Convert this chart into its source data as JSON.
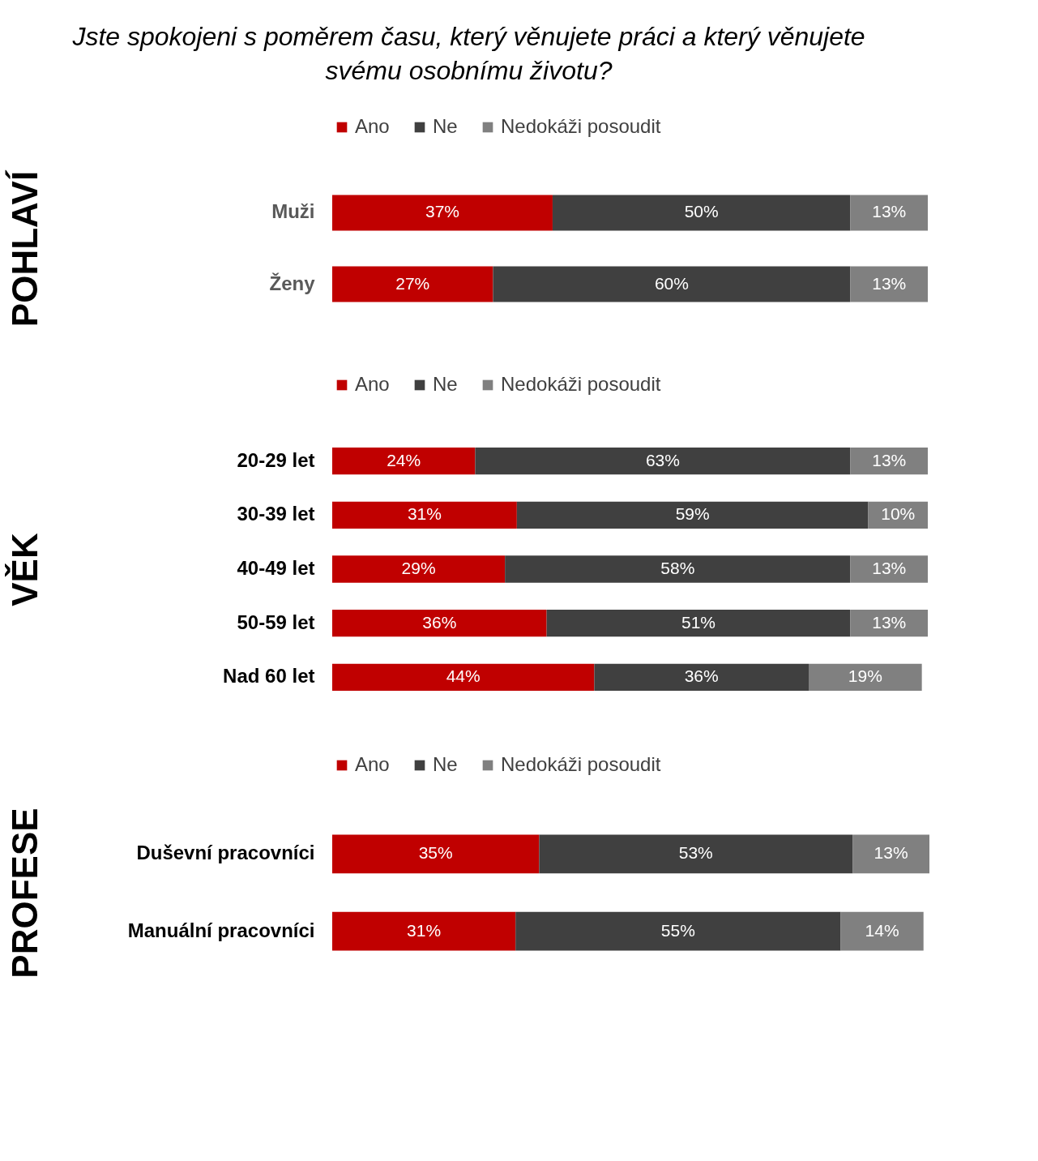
{
  "chart_data": [
    {
      "type": "bar",
      "title": "Jste spokojeni s poměrem času, který věnujete práci a který věnujete svému osobnímu životu?",
      "ylabel": "POHLAVÍ",
      "orientation": "horizontal",
      "stacked": true,
      "categories": [
        "Muži",
        "Ženy"
      ],
      "xlim": [
        0,
        100
      ],
      "tick_labels": "y",
      "legend": "top",
      "series": [
        {
          "name": "Ano",
          "color": "#c00000",
          "values": [
            37,
            27
          ],
          "value_labels": [
            "37%",
            "27%"
          ]
        },
        {
          "name": "Ne",
          "color": "#404040",
          "values": [
            50,
            60
          ],
          "value_labels": [
            "50%",
            "60%"
          ]
        },
        {
          "name": "Nedokáži posoudit",
          "color": "#808080",
          "values": [
            13,
            13
          ],
          "value_labels": [
            "13%",
            "13%"
          ]
        }
      ]
    },
    {
      "type": "bar",
      "ylabel": "VĚK",
      "orientation": "horizontal",
      "stacked": true,
      "categories": [
        "20-29 let",
        "30-39 let",
        "40-49 let",
        "50-59 let",
        "Nad 60 let"
      ],
      "xlim": [
        0,
        100
      ],
      "tick_labels": "y",
      "legend": "top",
      "series": [
        {
          "name": "Ano",
          "color": "#c00000",
          "values": [
            24,
            31,
            29,
            36,
            44
          ],
          "value_labels": [
            "24%",
            "31%",
            "29%",
            "36%",
            "44%"
          ]
        },
        {
          "name": "Ne",
          "color": "#404040",
          "values": [
            63,
            59,
            58,
            51,
            36
          ],
          "value_labels": [
            "63%",
            "59%",
            "58%",
            "51%",
            "36%"
          ]
        },
        {
          "name": "Nedokáži posoudit",
          "color": "#808080",
          "values": [
            13,
            10,
            13,
            13,
            19
          ],
          "value_labels": [
            "13%",
            "10%",
            "13%",
            "13%",
            "19%"
          ]
        }
      ]
    },
    {
      "type": "bar",
      "ylabel": "PROFESE",
      "orientation": "horizontal",
      "stacked": true,
      "categories": [
        "Duševní pracovníci",
        "Manuální pracovníci"
      ],
      "xlim": [
        0,
        101
      ],
      "tick_labels": "y",
      "legend": "top",
      "series": [
        {
          "name": "Ano",
          "color": "#c00000",
          "values": [
            35,
            31
          ],
          "value_labels": [
            "35%",
            "31%"
          ]
        },
        {
          "name": "Ne",
          "color": "#404040",
          "values": [
            53,
            55
          ],
          "value_labels": [
            "53%",
            "55%"
          ]
        },
        {
          "name": "Nedokáži posoudit",
          "color": "#808080",
          "values": [
            13,
            14
          ],
          "value_labels": [
            "13%",
            "14%"
          ]
        }
      ]
    }
  ]
}
